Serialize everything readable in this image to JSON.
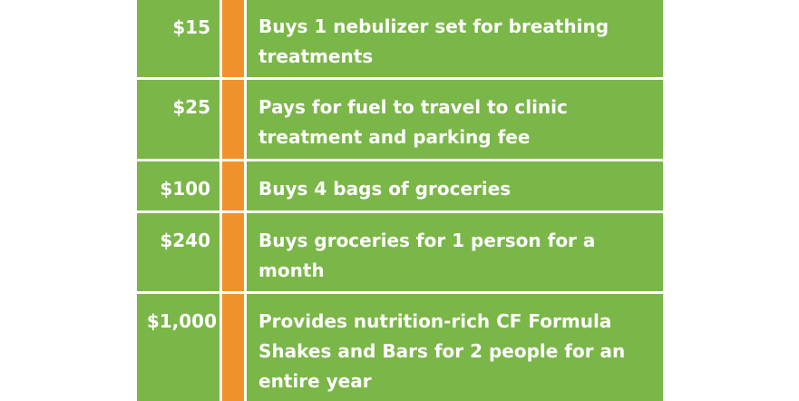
{
  "rows": [
    {
      "amount": "$15",
      "description": "Buys 1 nebulizer set for breathing treatments"
    },
    {
      "amount": "$25",
      "description": "Pays for fuel to travel to clinic treatment and parking fee"
    },
    {
      "amount": "$100",
      "description": "Buys 4 bags of groceries"
    },
    {
      "amount": "$240",
      "description": "Buys groceries for 1 person for a month"
    },
    {
      "amount": "$1,000",
      "description": "Provides nutrition-rich CF Formula Shakes and Bars for 2 people for an entire year"
    }
  ],
  "colors": {
    "green": "#7ab648",
    "orange": "#f0922b",
    "text": "#ffffff"
  }
}
